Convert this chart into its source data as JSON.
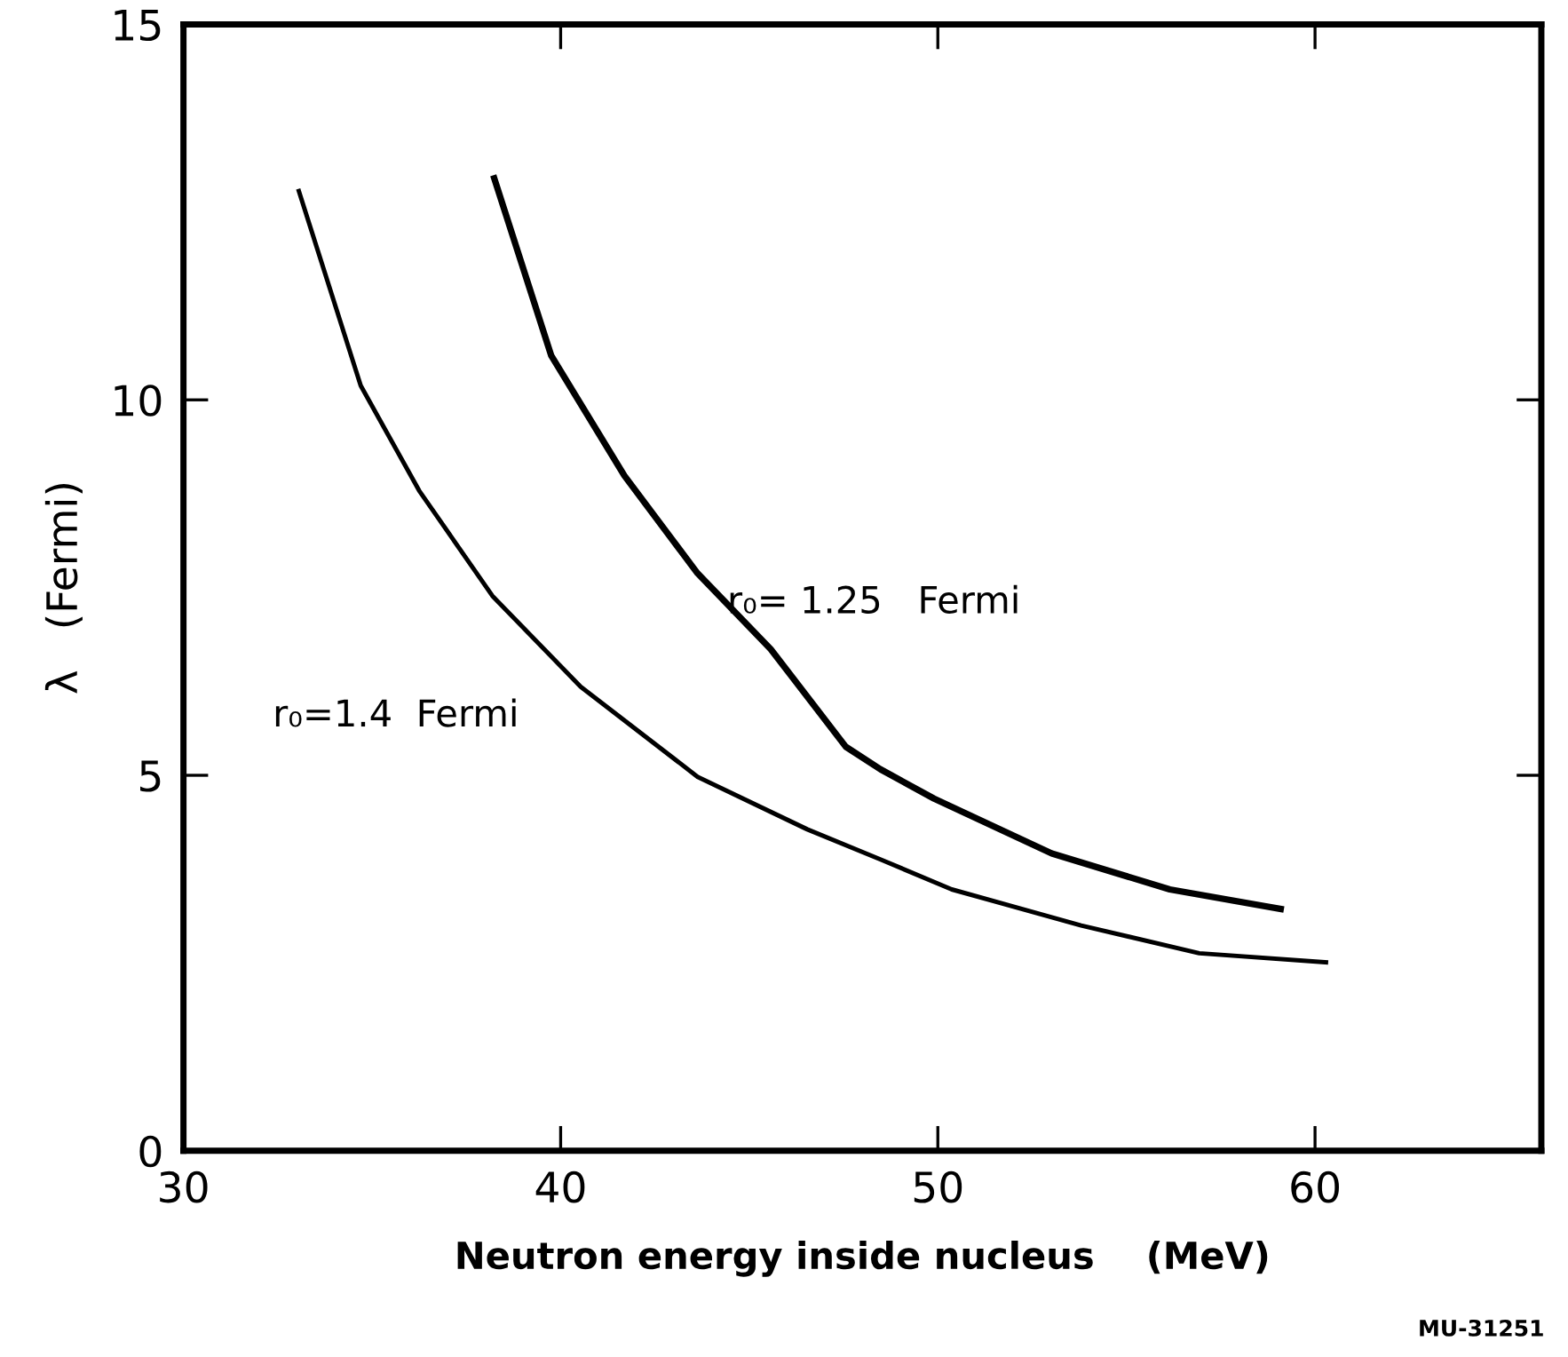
{
  "chart_data": {
    "type": "line",
    "xlabel": "Neutron energy inside nucleus    (MeV)",
    "ylabel": "λ   (Fermi)",
    "annotations": [
      "MU-31251"
    ],
    "xlim": [
      30,
      66
    ],
    "ylim": [
      0,
      15
    ],
    "xticks": [
      30,
      40,
      50,
      60
    ],
    "yticks": [
      0,
      5,
      10,
      15
    ],
    "grid": false,
    "legend": false,
    "marker": "none",
    "line_style": "solid",
    "series": [
      {
        "name": "r₀=1.4  Fermi",
        "color": "#000000",
        "x": [
          33.06,
          34.7,
          36.25,
          38.19,
          40.53,
          43.63,
          46.54,
          48.48,
          50.37,
          53.8,
          56.93,
          60.29
        ],
        "values": [
          12.78,
          10.19,
          8.79,
          7.39,
          6.18,
          4.98,
          4.28,
          3.88,
          3.48,
          3.0,
          2.63,
          2.51
        ]
      },
      {
        "name": "r₀= 1.25   Fermi",
        "color": "#000000",
        "x": [
          38.24,
          39.75,
          41.69,
          43.63,
          45.57,
          47.56,
          48.48,
          49.9,
          53.02,
          56.15,
          59.09
        ],
        "values": [
          12.95,
          10.59,
          8.99,
          7.69,
          6.68,
          5.38,
          5.08,
          4.69,
          3.96,
          3.48,
          3.22
        ]
      }
    ]
  }
}
